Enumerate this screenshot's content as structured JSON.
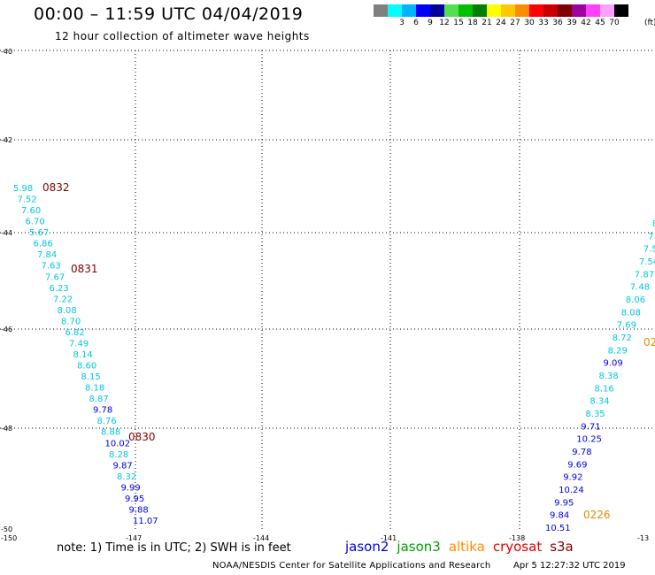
{
  "header": {
    "title": "00:00 – 11:59 UTC 04/04/2019",
    "subtitle": "12 hour collection of altimeter wave heights"
  },
  "legend": {
    "unit": "(ft)",
    "swatches": [
      {
        "color": "#808080",
        "label": ""
      },
      {
        "color": "#00ffff",
        "label": "3"
      },
      {
        "color": "#00b4ff",
        "label": "6"
      },
      {
        "color": "#0000ff",
        "label": "9"
      },
      {
        "color": "#0000a0",
        "label": "12"
      },
      {
        "color": "#50e050",
        "label": "15"
      },
      {
        "color": "#00c000",
        "label": "18"
      },
      {
        "color": "#008000",
        "label": "21"
      },
      {
        "color": "#ffff00",
        "label": "24"
      },
      {
        "color": "#ffc800",
        "label": "27"
      },
      {
        "color": "#ff8c00",
        "label": "30"
      },
      {
        "color": "#ff0000",
        "label": "33"
      },
      {
        "color": "#c80000",
        "label": "36"
      },
      {
        "color": "#800000",
        "label": "39"
      },
      {
        "color": "#a000a0",
        "label": "42"
      },
      {
        "color": "#ff40ff",
        "label": "45"
      },
      {
        "color": "#ffa0ff",
        "label": "70"
      },
      {
        "color": "#000000",
        "label": ""
      }
    ]
  },
  "map": {
    "lon_labels": [
      "-150",
      "-147",
      "-144",
      "-141",
      "-138",
      "-13"
    ],
    "lat_labels": [
      "-40",
      "-42",
      "-44",
      "-46",
      "-48",
      "-50"
    ],
    "left_track": {
      "values": [
        {
          "v": "5.98",
          "c": "#00c8dc"
        },
        {
          "v": "7.52",
          "c": "#00c8dc"
        },
        {
          "v": "7.60",
          "c": "#00c8dc"
        },
        {
          "v": "6.70",
          "c": "#00c8dc"
        },
        {
          "v": "5.67",
          "c": "#00c8dc"
        },
        {
          "v": "6.86",
          "c": "#00c8dc"
        },
        {
          "v": "7.84",
          "c": "#00c8dc"
        },
        {
          "v": "7.63",
          "c": "#00c8dc"
        },
        {
          "v": "7.67",
          "c": "#00c8dc"
        },
        {
          "v": "6.23",
          "c": "#00c8dc"
        },
        {
          "v": "7.22",
          "c": "#00c8dc"
        },
        {
          "v": "8.08",
          "c": "#00c8dc"
        },
        {
          "v": "8.70",
          "c": "#00c8dc"
        },
        {
          "v": "6.82",
          "c": "#00c8dc"
        },
        {
          "v": "7.49",
          "c": "#00c8dc"
        },
        {
          "v": "8.14",
          "c": "#00c8dc"
        },
        {
          "v": "8.60",
          "c": "#00c8dc"
        },
        {
          "v": "8.15",
          "c": "#00c8dc"
        },
        {
          "v": "8.18",
          "c": "#00c8dc"
        },
        {
          "v": "8.87",
          "c": "#00c8dc"
        },
        {
          "v": "9.78",
          "c": "#0000e0"
        },
        {
          "v": "8.76",
          "c": "#00c8dc"
        },
        {
          "v": "8.88",
          "c": "#00c8dc"
        },
        {
          "v": "10.02",
          "c": "#0000e0"
        },
        {
          "v": "8.28",
          "c": "#00c8dc"
        },
        {
          "v": "9.87",
          "c": "#0000e0"
        },
        {
          "v": "8.32",
          "c": "#00c8dc"
        },
        {
          "v": "9.99",
          "c": "#0000e0"
        },
        {
          "v": "9.95",
          "c": "#0000e0"
        },
        {
          "v": "9.88",
          "c": "#0000e0"
        },
        {
          "v": "11.07",
          "c": "#0000e0"
        }
      ],
      "times": [
        {
          "t": "0832",
          "c": "#800000"
        },
        {
          "t": "0831",
          "c": "#800000"
        },
        {
          "t": "0830",
          "c": "#800000"
        }
      ]
    },
    "right_track": {
      "values": [
        {
          "v": "8",
          "c": "#00c8dc"
        },
        {
          "v": "7.",
          "c": "#00c8dc"
        },
        {
          "v": "7.5",
          "c": "#00c8dc"
        },
        {
          "v": "7.54",
          "c": "#00c8dc"
        },
        {
          "v": "7.87",
          "c": "#00c8dc"
        },
        {
          "v": "7.48",
          "c": "#00c8dc"
        },
        {
          "v": "8.06",
          "c": "#00c8dc"
        },
        {
          "v": "8.08",
          "c": "#00c8dc"
        },
        {
          "v": "7.69",
          "c": "#00c8dc"
        },
        {
          "v": "8.72",
          "c": "#00c8dc"
        },
        {
          "v": "8.29",
          "c": "#00c8dc"
        },
        {
          "v": "9.09",
          "c": "#0000e0"
        },
        {
          "v": "8.38",
          "c": "#00c8dc"
        },
        {
          "v": "8.16",
          "c": "#00c8dc"
        },
        {
          "v": "8.34",
          "c": "#00c8dc"
        },
        {
          "v": "8.35",
          "c": "#00c8dc"
        },
        {
          "v": "9.71",
          "c": "#0000e0"
        },
        {
          "v": "10.25",
          "c": "#0000e0"
        },
        {
          "v": "9.78",
          "c": "#0000e0"
        },
        {
          "v": "9.69",
          "c": "#0000e0"
        },
        {
          "v": "9.92",
          "c": "#0000e0"
        },
        {
          "v": "10.24",
          "c": "#0000e0"
        },
        {
          "v": "9.95",
          "c": "#0000e0"
        },
        {
          "v": "9.84",
          "c": "#0000e0"
        },
        {
          "v": "10.51",
          "c": "#0000e0"
        }
      ],
      "times": [
        {
          "t": "02",
          "c": "#e08c00"
        },
        {
          "t": "0226",
          "c": "#e08c00"
        }
      ]
    }
  },
  "footer": {
    "note": "note: 1) Time is in UTC; 2) SWH is in feet",
    "satellites": [
      {
        "name": "jason2",
        "color": "#0000e0"
      },
      {
        "name": "jason3",
        "color": "#00a000"
      },
      {
        "name": "altika",
        "color": "#ff8c00"
      },
      {
        "name": "cryosat",
        "color": "#e00000"
      },
      {
        "name": "s3a",
        "color": "#800000"
      }
    ],
    "credit": "NOAA/NESDIS Center for Satellite Applications and Research",
    "timestamp": "Apr 5 12:27:32 UTC 2019"
  }
}
